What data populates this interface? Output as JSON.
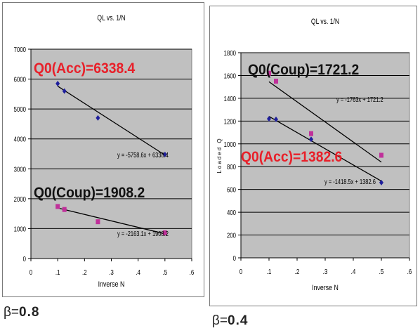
{
  "panels": [
    {
      "beta_prefix": "β=",
      "beta_value": "0.8",
      "chart_data": {
        "type": "scatter",
        "title": "QL vs. 1/N",
        "xlabel": "Inverse N",
        "ylabel": "",
        "xlim": [
          0,
          0.6
        ],
        "ylim": [
          0,
          7000
        ],
        "xticks": [
          0,
          0.1,
          0.2,
          0.3,
          0.4,
          0.5,
          0.6
        ],
        "yticks": [
          0,
          1000,
          2000,
          3000,
          4000,
          5000,
          6000,
          7000
        ],
        "grid": true,
        "series": [
          {
            "color": "#1f1f9c",
            "marker": "diamond",
            "x": [
              0.1,
              0.125,
              0.25,
              0.5
            ],
            "y": [
              5850,
              5600,
              4700,
              3480
            ],
            "trendline": {
              "slope": -5758.6,
              "intercept": 6338.4,
              "x_range": [
                0.1,
                0.5
              ],
              "label": "y = -5758.6x + 6338.4"
            }
          },
          {
            "color": "#c0309a",
            "marker": "square",
            "x": [
              0.1,
              0.125,
              0.25,
              0.5
            ],
            "y": [
              1740,
              1640,
              1230,
              860
            ],
            "trendline": {
              "slope": -2163.1,
              "intercept": 1908.2,
              "x_range": [
                0.1,
                0.5
              ],
              "label": "y = -2163.1x + 1908.2"
            }
          }
        ],
        "annotations": [
          {
            "text": "Q0(Acc)=6338.4",
            "color": "#e8202a"
          },
          {
            "text": "Q0(Coup)=1908.2",
            "color": "#111111"
          }
        ]
      }
    },
    {
      "beta_prefix": "β=",
      "beta_value": "0.4",
      "chart_data": {
        "type": "scatter",
        "title": "QL vs. 1/N",
        "xlabel": "Inverse N",
        "ylabel": "Loaded Q",
        "xlim": [
          0,
          0.6
        ],
        "ylim": [
          0,
          1800
        ],
        "xticks": [
          0,
          0.1,
          0.2,
          0.3,
          0.4,
          0.5,
          0.6
        ],
        "yticks": [
          0,
          200,
          400,
          600,
          800,
          1000,
          1200,
          1400,
          1600,
          1800
        ],
        "grid": true,
        "series": [
          {
            "color": "#1f1f9c",
            "marker": "diamond",
            "x": [
              0.1,
              0.125,
              0.25,
              0.5
            ],
            "y": [
              1220,
              1215,
              1040,
              660
            ],
            "trendline": {
              "slope": -1418.5,
              "intercept": 1382.6,
              "x_range": [
                0.1,
                0.5
              ],
              "label": "y = -1418.5x + 1382.6"
            }
          },
          {
            "color": "#c0309a",
            "marker": "square",
            "x": [
              0.1,
              0.125,
              0.25,
              0.5
            ],
            "y": [
              1620,
              1550,
              1090,
              900
            ],
            "trendline": {
              "slope": -1763,
              "intercept": 1721.2,
              "x_range": [
                0.1,
                0.5
              ],
              "label": "y = -1763x + 1721.2"
            }
          }
        ],
        "annotations": [
          {
            "text": "Q0(Coup)=1721.2",
            "color": "#111111"
          },
          {
            "text": "Q0(Acc)=1382.6",
            "color": "#e8202a"
          }
        ]
      }
    }
  ]
}
